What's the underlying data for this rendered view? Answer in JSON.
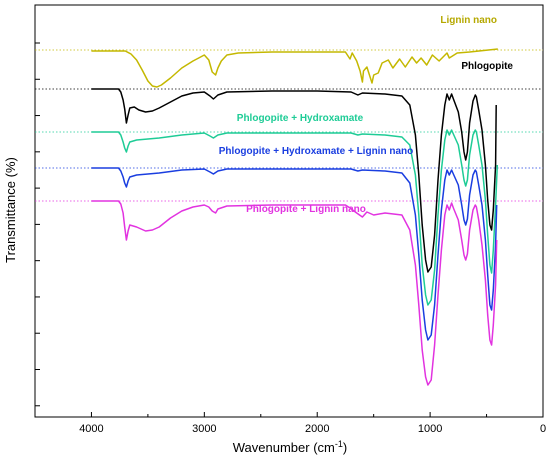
{
  "chart_data": {
    "type": "line",
    "title": "",
    "xlabel": "Wavenumber (cm",
    "xlabel_sup": "-1",
    "xlabel_close": ")",
    "ylabel": "Transmittance (%)",
    "xlim": [
      4500,
      0
    ],
    "x_ticks": [
      4000,
      3000,
      2000,
      1000,
      0
    ],
    "x_tick_labels": [
      "4000",
      "3000",
      "2000",
      "1000",
      "0"
    ],
    "y_tick_count": 10,
    "y_ticks_labeled": false,
    "grid": false,
    "legend": "inline labels",
    "series": [
      {
        "name": "Lignin nano",
        "color": "#c4b800",
        "baseline_y": 45,
        "points": [
          [
            4000,
            46
          ],
          [
            3700,
            46
          ],
          [
            3650,
            49
          ],
          [
            3600,
            55
          ],
          [
            3550,
            65
          ],
          [
            3500,
            76
          ],
          [
            3460,
            81
          ],
          [
            3420,
            82
          ],
          [
            3380,
            80
          ],
          [
            3300,
            73
          ],
          [
            3200,
            63
          ],
          [
            3100,
            56
          ],
          [
            3050,
            53
          ],
          [
            3000,
            50
          ],
          [
            2960,
            55
          ],
          [
            2930,
            67
          ],
          [
            2900,
            70
          ],
          [
            2880,
            63
          ],
          [
            2850,
            56
          ],
          [
            2800,
            50
          ],
          [
            2700,
            48
          ],
          [
            2400,
            47
          ],
          [
            2000,
            47
          ],
          [
            1750,
            47
          ],
          [
            1710,
            54
          ],
          [
            1690,
            48
          ],
          [
            1650,
            56
          ],
          [
            1620,
            66
          ],
          [
            1600,
            77
          ],
          [
            1590,
            66
          ],
          [
            1560,
            62
          ],
          [
            1515,
            78
          ],
          [
            1500,
            70
          ],
          [
            1460,
            68
          ],
          [
            1425,
            58
          ],
          [
            1370,
            55
          ],
          [
            1330,
            63
          ],
          [
            1270,
            54
          ],
          [
            1220,
            62
          ],
          [
            1160,
            52
          ],
          [
            1120,
            58
          ],
          [
            1080,
            53
          ],
          [
            1030,
            60
          ],
          [
            980,
            50
          ],
          [
            920,
            56
          ],
          [
            850,
            48
          ],
          [
            830,
            53
          ],
          [
            760,
            48
          ],
          [
            650,
            47
          ],
          [
            400,
            44
          ]
        ]
      },
      {
        "name": "Phlogopite",
        "color": "#000000",
        "baseline_y": 84,
        "points": [
          [
            4000,
            84
          ],
          [
            3760,
            84
          ],
          [
            3740,
            87
          ],
          [
            3720,
            95
          ],
          [
            3705,
            104
          ],
          [
            3690,
            118
          ],
          [
            3675,
            110
          ],
          [
            3660,
            103
          ],
          [
            3620,
            102
          ],
          [
            3580,
            105
          ],
          [
            3520,
            107
          ],
          [
            3460,
            106
          ],
          [
            3400,
            103
          ],
          [
            3300,
            97
          ],
          [
            3200,
            91
          ],
          [
            3100,
            88
          ],
          [
            3000,
            87
          ],
          [
            2950,
            91
          ],
          [
            2920,
            94
          ],
          [
            2880,
            90
          ],
          [
            2800,
            87
          ],
          [
            2400,
            86
          ],
          [
            2000,
            86
          ],
          [
            1700,
            87
          ],
          [
            1640,
            90
          ],
          [
            1600,
            88
          ],
          [
            1400,
            89
          ],
          [
            1250,
            91
          ],
          [
            1180,
            100
          ],
          [
            1130,
            130
          ],
          [
            1100,
            170
          ],
          [
            1070,
            220
          ],
          [
            1040,
            255
          ],
          [
            1020,
            267
          ],
          [
            990,
            262
          ],
          [
            960,
            230
          ],
          [
            930,
            175
          ],
          [
            900,
            130
          ],
          [
            870,
            100
          ],
          [
            850,
            89
          ],
          [
            830,
            95
          ],
          [
            810,
            89
          ],
          [
            790,
            95
          ],
          [
            750,
            107
          ],
          [
            720,
            127
          ],
          [
            700,
            147
          ],
          [
            685,
            155
          ],
          [
            670,
            147
          ],
          [
            650,
            118
          ],
          [
            620,
            96
          ],
          [
            600,
            90
          ],
          [
            590,
            92
          ],
          [
            570,
            105
          ],
          [
            540,
            125
          ],
          [
            510,
            160
          ],
          [
            490,
            195
          ],
          [
            470,
            220
          ],
          [
            455,
            225
          ],
          [
            440,
            205
          ],
          [
            420,
            160
          ],
          [
            415,
            100
          ]
        ]
      },
      {
        "name": "Phlogopite +  Hydroxamate",
        "color": "#1ecc96",
        "baseline_y": 127,
        "points": [
          [
            4000,
            127
          ],
          [
            3760,
            127
          ],
          [
            3740,
            130
          ],
          [
            3720,
            137
          ],
          [
            3705,
            143
          ],
          [
            3690,
            147
          ],
          [
            3675,
            141
          ],
          [
            3660,
            137
          ],
          [
            3600,
            135
          ],
          [
            3400,
            133
          ],
          [
            3200,
            130
          ],
          [
            3000,
            128
          ],
          [
            2950,
            131
          ],
          [
            2920,
            133
          ],
          [
            2880,
            130
          ],
          [
            2800,
            128
          ],
          [
            2000,
            128
          ],
          [
            1700,
            128
          ],
          [
            1640,
            130
          ],
          [
            1600,
            129
          ],
          [
            1400,
            130
          ],
          [
            1250,
            132
          ],
          [
            1180,
            140
          ],
          [
            1130,
            170
          ],
          [
            1100,
            210
          ],
          [
            1070,
            260
          ],
          [
            1040,
            290
          ],
          [
            1020,
            300
          ],
          [
            990,
            295
          ],
          [
            960,
            265
          ],
          [
            930,
            210
          ],
          [
            900,
            165
          ],
          [
            870,
            135
          ],
          [
            850,
            125
          ],
          [
            830,
            130
          ],
          [
            810,
            125
          ],
          [
            790,
            130
          ],
          [
            750,
            140
          ],
          [
            720,
            160
          ],
          [
            700,
            175
          ],
          [
            685,
            181
          ],
          [
            670,
            175
          ],
          [
            650,
            150
          ],
          [
            620,
            130
          ],
          [
            600,
            125
          ],
          [
            590,
            127
          ],
          [
            570,
            140
          ],
          [
            540,
            160
          ],
          [
            510,
            195
          ],
          [
            490,
            230
          ],
          [
            470,
            260
          ],
          [
            455,
            268
          ],
          [
            440,
            245
          ],
          [
            420,
            200
          ],
          [
            405,
            160
          ]
        ]
      },
      {
        "name": "Phlogopite + Hydroxamate + Lignin nano",
        "color": "#1a3ee0",
        "baseline_y": 163,
        "points": [
          [
            4000,
            163
          ],
          [
            3760,
            163
          ],
          [
            3740,
            166
          ],
          [
            3720,
            172
          ],
          [
            3705,
            178
          ],
          [
            3690,
            182
          ],
          [
            3675,
            176
          ],
          [
            3660,
            172
          ],
          [
            3600,
            170
          ],
          [
            3400,
            168
          ],
          [
            3200,
            165
          ],
          [
            3000,
            164
          ],
          [
            2950,
            167
          ],
          [
            2920,
            169
          ],
          [
            2880,
            166
          ],
          [
            2800,
            164
          ],
          [
            2000,
            164
          ],
          [
            1700,
            164
          ],
          [
            1640,
            166
          ],
          [
            1600,
            165
          ],
          [
            1400,
            166
          ],
          [
            1250,
            168
          ],
          [
            1180,
            178
          ],
          [
            1130,
            210
          ],
          [
            1100,
            250
          ],
          [
            1070,
            295
          ],
          [
            1040,
            325
          ],
          [
            1020,
            335
          ],
          [
            990,
            330
          ],
          [
            960,
            300
          ],
          [
            930,
            250
          ],
          [
            900,
            205
          ],
          [
            870,
            175
          ],
          [
            850,
            165
          ],
          [
            830,
            170
          ],
          [
            810,
            165
          ],
          [
            790,
            170
          ],
          [
            750,
            180
          ],
          [
            720,
            200
          ],
          [
            700,
            215
          ],
          [
            685,
            220
          ],
          [
            670,
            214
          ],
          [
            650,
            190
          ],
          [
            620,
            170
          ],
          [
            600,
            165
          ],
          [
            590,
            167
          ],
          [
            570,
            180
          ],
          [
            540,
            200
          ],
          [
            510,
            235
          ],
          [
            490,
            270
          ],
          [
            470,
            300
          ],
          [
            455,
            305
          ],
          [
            440,
            285
          ],
          [
            420,
            240
          ],
          [
            410,
            200
          ]
        ]
      },
      {
        "name": "Phlogopite + Lignin nano",
        "color": "#e233e0",
        "baseline_y": 196,
        "points": [
          [
            4000,
            196
          ],
          [
            3760,
            196
          ],
          [
            3740,
            199
          ],
          [
            3720,
            208
          ],
          [
            3705,
            222
          ],
          [
            3690,
            235
          ],
          [
            3675,
            226
          ],
          [
            3660,
            220
          ],
          [
            3600,
            222
          ],
          [
            3520,
            226
          ],
          [
            3460,
            225
          ],
          [
            3400,
            222
          ],
          [
            3300,
            213
          ],
          [
            3200,
            206
          ],
          [
            3100,
            202
          ],
          [
            3000,
            200
          ],
          [
            2960,
            202
          ],
          [
            2930,
            206
          ],
          [
            2900,
            208
          ],
          [
            2880,
            204
          ],
          [
            2800,
            201
          ],
          [
            2400,
            200
          ],
          [
            2000,
            200
          ],
          [
            1750,
            200
          ],
          [
            1710,
            203
          ],
          [
            1650,
            208
          ],
          [
            1600,
            212
          ],
          [
            1560,
            207
          ],
          [
            1500,
            210
          ],
          [
            1400,
            208
          ],
          [
            1250,
            210
          ],
          [
            1180,
            225
          ],
          [
            1130,
            260
          ],
          [
            1100,
            300
          ],
          [
            1070,
            345
          ],
          [
            1040,
            372
          ],
          [
            1020,
            380
          ],
          [
            990,
            375
          ],
          [
            960,
            340
          ],
          [
            930,
            290
          ],
          [
            900,
            245
          ],
          [
            870,
            210
          ],
          [
            850,
            200
          ],
          [
            830,
            205
          ],
          [
            810,
            198
          ],
          [
            790,
            204
          ],
          [
            750,
            215
          ],
          [
            720,
            235
          ],
          [
            700,
            250
          ],
          [
            685,
            255
          ],
          [
            670,
            249
          ],
          [
            650,
            225
          ],
          [
            620,
            205
          ],
          [
            600,
            200
          ],
          [
            590,
            202
          ],
          [
            570,
            215
          ],
          [
            540,
            240
          ],
          [
            510,
            275
          ],
          [
            490,
            310
          ],
          [
            470,
            335
          ],
          [
            455,
            340
          ],
          [
            440,
            320
          ],
          [
            420,
            280
          ],
          [
            410,
            235
          ]
        ]
      }
    ],
    "annotations": [
      {
        "text": "Lignin nano",
        "color": "#b5a800"
      },
      {
        "text": "Phlogopite",
        "color": "#000000"
      },
      {
        "text": "Phlogopite +  Hydroxamate",
        "color": "#1ecc96"
      },
      {
        "text": "Phlogopite + Hydroxamate + Lignin nano",
        "color": "#1a3ee0"
      },
      {
        "text": "Phlogopite + Lignin nano",
        "color": "#e233e0"
      }
    ]
  }
}
